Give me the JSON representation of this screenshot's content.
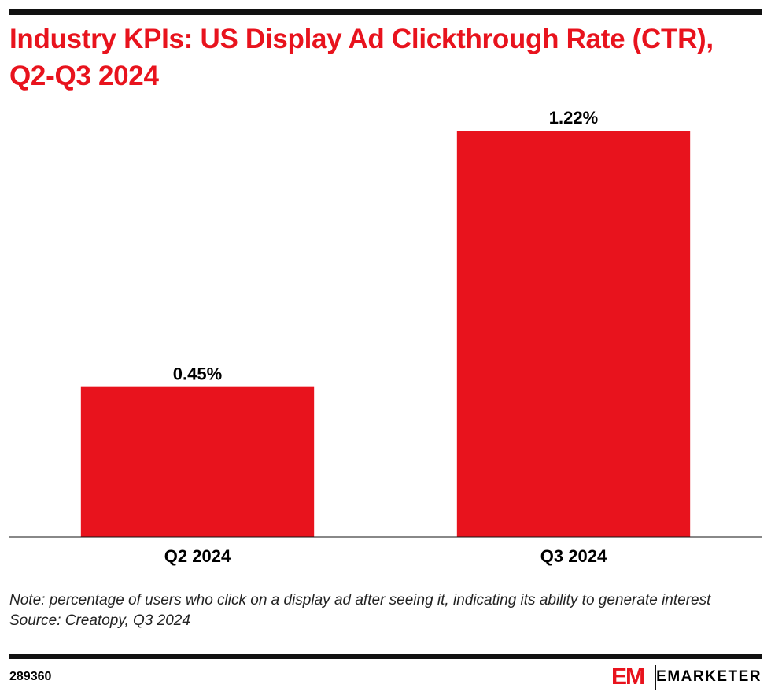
{
  "chart_data": {
    "type": "bar",
    "title": "Industry KPIs: US Display Ad Clickthrough Rate (CTR), Q2-Q3 2024",
    "categories": [
      "Q2 2024",
      "Q3 2024"
    ],
    "values": [
      0.45,
      1.22
    ],
    "value_labels": [
      "0.45%",
      "1.22%"
    ],
    "color": "#e8131d",
    "note": "Note: percentage of users who click on a display ad after seeing it, indicating its ability to generate interest",
    "source": "Source: Creatopy, Q3 2024",
    "chart_id": "289360",
    "logo_mark": "EM",
    "brand": "EMARKETER"
  }
}
